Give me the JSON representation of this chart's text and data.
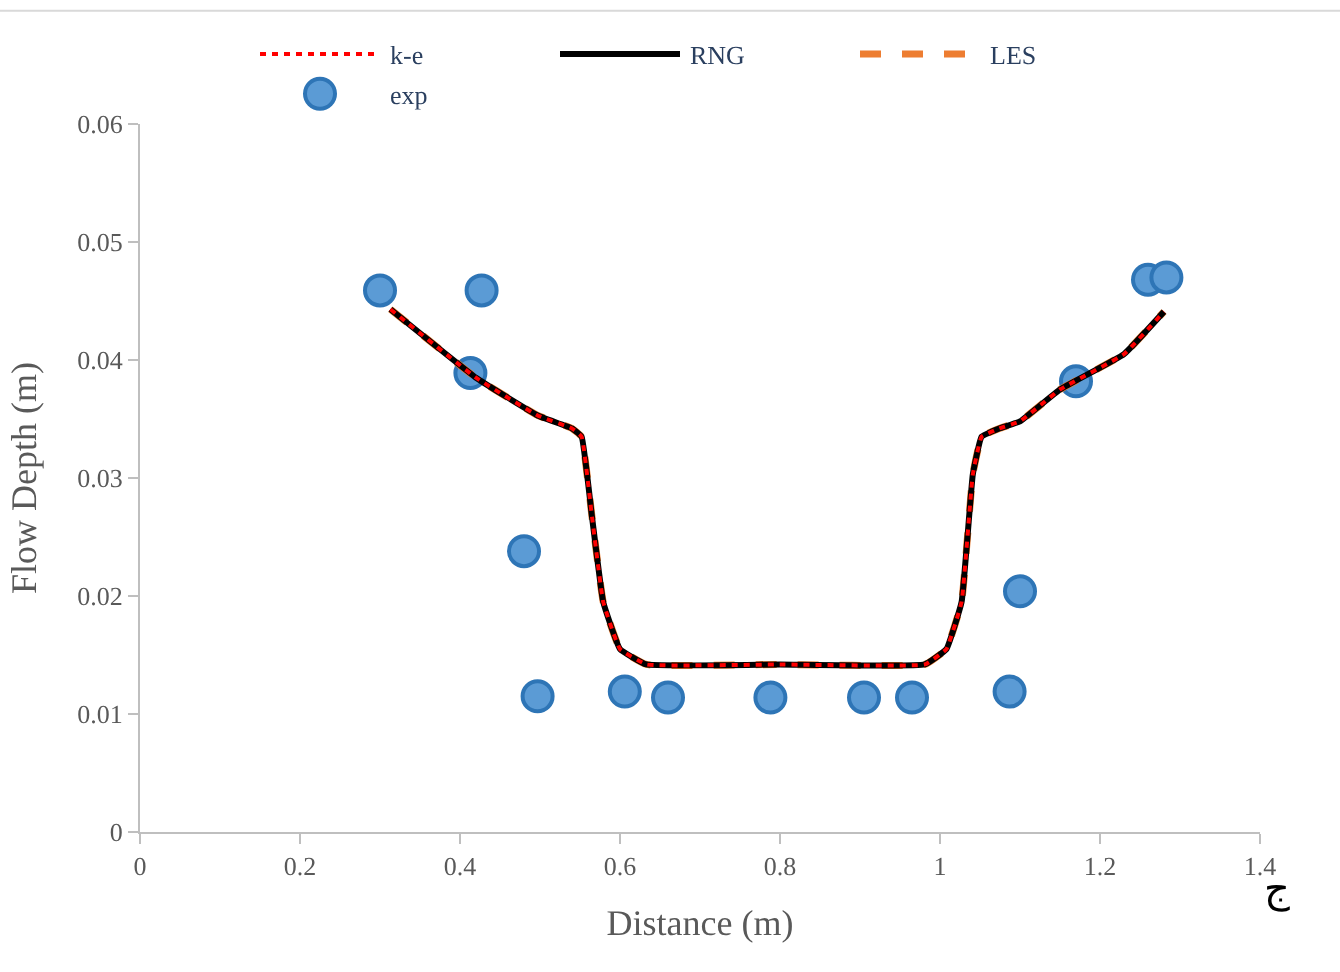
{
  "chart_data": {
    "type": "line",
    "xlabel": "Distance (m)",
    "ylabel": "Flow Depth (m)",
    "xlim": [
      0,
      1.4
    ],
    "xticks": [
      0,
      0.2,
      0.4,
      0.6,
      0.8,
      1,
      1.2,
      1.4
    ],
    "ylim": [
      0,
      0.06
    ],
    "yticks": [
      0,
      0.01,
      0.02,
      0.03,
      0.04,
      0.05,
      0.06
    ],
    "legend": "top",
    "annotations": [
      "ج"
    ],
    "series": [
      {
        "name": "k-e",
        "color": "#ff0000",
        "line_style": "dotted",
        "x": [
          0.313,
          0.42,
          0.497,
          0.54,
          0.552,
          0.565,
          0.579,
          0.6,
          0.633,
          0.8,
          0.981,
          1.008,
          1.027,
          1.041,
          1.052,
          1.074,
          1.1,
          1.15,
          1.23,
          1.28
        ],
        "values": [
          0.0443,
          0.0385,
          0.0353,
          0.0342,
          0.0335,
          0.0267,
          0.0195,
          0.0155,
          0.0142,
          0.0142,
          0.0142,
          0.0155,
          0.0195,
          0.0303,
          0.0335,
          0.0342,
          0.0348,
          0.0375,
          0.0405,
          0.0441
        ]
      },
      {
        "name": "RNG",
        "color": "#000000",
        "line_style": "solid",
        "x": [
          0.313,
          0.42,
          0.497,
          0.54,
          0.552,
          0.565,
          0.579,
          0.6,
          0.633,
          0.8,
          0.981,
          1.008,
          1.027,
          1.041,
          1.052,
          1.074,
          1.1,
          1.15,
          1.23,
          1.28
        ],
        "values": [
          0.0443,
          0.0385,
          0.0353,
          0.0342,
          0.0335,
          0.0267,
          0.0195,
          0.0155,
          0.0142,
          0.0142,
          0.0142,
          0.0155,
          0.0195,
          0.0303,
          0.0335,
          0.0342,
          0.0348,
          0.0375,
          0.0405,
          0.0441
        ]
      },
      {
        "name": "LES",
        "color": "#ed7d31",
        "line_style": "dashed",
        "x": [
          0.313,
          0.42,
          0.497,
          0.54,
          0.552,
          0.565,
          0.579,
          0.6,
          0.633,
          0.8,
          0.981,
          1.008,
          1.027,
          1.041,
          1.052,
          1.074,
          1.1,
          1.15,
          1.23,
          1.28
        ],
        "values": [
          0.0443,
          0.0385,
          0.0353,
          0.0342,
          0.0335,
          0.0267,
          0.0195,
          0.0155,
          0.0142,
          0.0142,
          0.0142,
          0.0155,
          0.0195,
          0.0303,
          0.0335,
          0.0342,
          0.0348,
          0.0375,
          0.0405,
          0.0441
        ]
      },
      {
        "name": "exp",
        "type": "scatter",
        "color": "#5b9bd5",
        "marker": "circle",
        "x": [
          0.3,
          0.427,
          0.413,
          0.48,
          0.497,
          0.606,
          0.66,
          0.788,
          0.905,
          0.965,
          1.087,
          1.1,
          1.17,
          1.26,
          1.283
        ],
        "values": [
          0.0459,
          0.0459,
          0.0389,
          0.0238,
          0.0115,
          0.0119,
          0.0114,
          0.0114,
          0.0114,
          0.0114,
          0.0119,
          0.0204,
          0.0382,
          0.0468,
          0.047
        ]
      }
    ]
  }
}
